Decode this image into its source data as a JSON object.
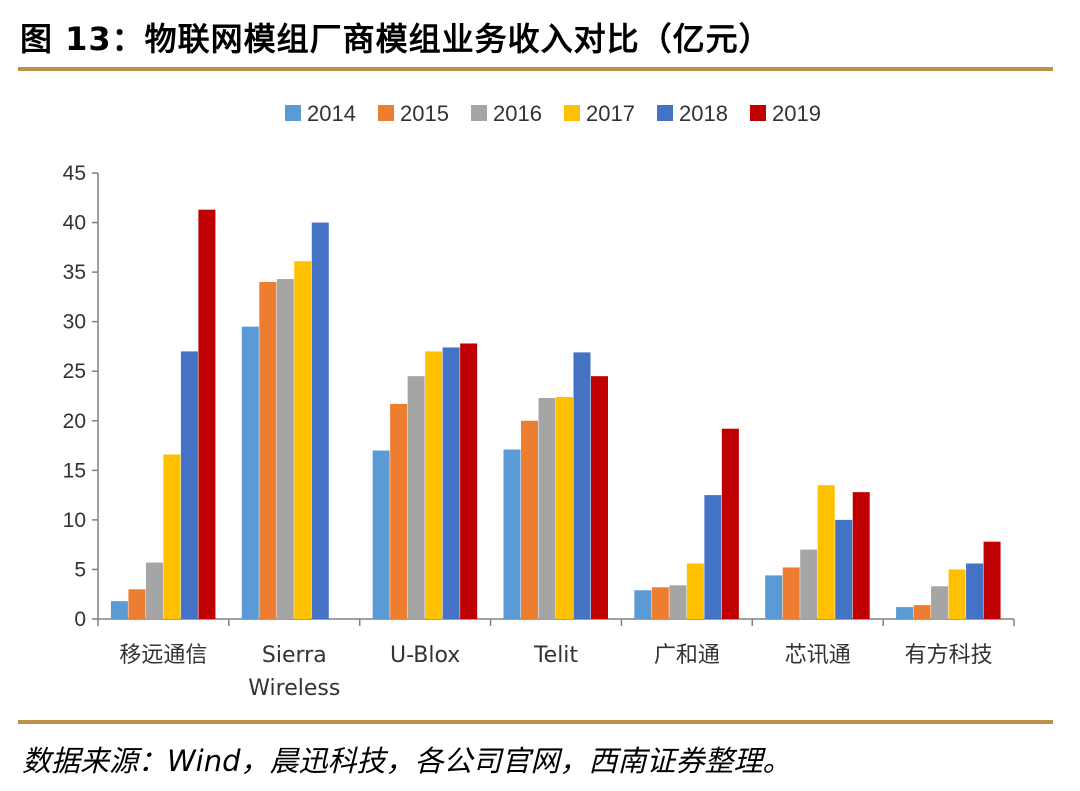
{
  "header": {
    "title": "图 13：物联网模组厂商模组业务收入对比（亿元）"
  },
  "footer": {
    "source": "数据来源：Wind，晨迅科技，各公司官网，西南证券整理。"
  },
  "colors": {
    "rule": "#c0904d",
    "axis": "#808080"
  },
  "chart_data": {
    "type": "bar",
    "title": "",
    "xlabel": "",
    "ylabel": "",
    "ylim": [
      0,
      45
    ],
    "yticks": [
      0,
      5,
      10,
      15,
      20,
      25,
      30,
      35,
      40,
      45
    ],
    "grid": false,
    "legend_position": "top",
    "categories": [
      [
        "移远通信"
      ],
      [
        "Sierra",
        "Wireless"
      ],
      [
        "U-Blox"
      ],
      [
        "Telit"
      ],
      [
        "广和通"
      ],
      [
        "芯讯通"
      ],
      [
        "有方科技"
      ]
    ],
    "series": [
      {
        "name": "2014",
        "color": "#5b9bd5",
        "values": [
          1.8,
          29.5,
          17.0,
          17.1,
          2.9,
          4.4,
          1.2
        ]
      },
      {
        "name": "2015",
        "color": "#ed7d31",
        "values": [
          3.0,
          34.0,
          21.7,
          20.0,
          3.2,
          5.2,
          1.4
        ]
      },
      {
        "name": "2016",
        "color": "#a5a5a5",
        "values": [
          5.7,
          34.3,
          24.5,
          22.3,
          3.4,
          7.0,
          3.3
        ]
      },
      {
        "name": "2017",
        "color": "#ffc000",
        "values": [
          16.6,
          36.1,
          27.0,
          22.4,
          5.6,
          13.5,
          5.0
        ]
      },
      {
        "name": "2018",
        "color": "#4472c4",
        "values": [
          27.0,
          40.0,
          27.4,
          26.9,
          12.5,
          10.0,
          5.6
        ]
      },
      {
        "name": "2019",
        "color": "#c00000",
        "values": [
          41.3,
          null,
          27.8,
          24.5,
          19.2,
          12.8,
          7.8
        ]
      }
    ]
  }
}
